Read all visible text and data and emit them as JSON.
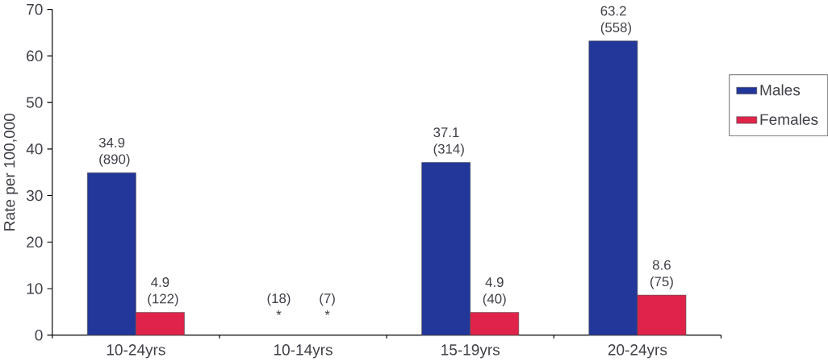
{
  "chart_data": {
    "type": "bar",
    "ylabel": "Rate per 100,000",
    "categories": [
      "10-24yrs",
      "10-14yrs",
      "15-19yrs",
      "20-24yrs"
    ],
    "series": [
      {
        "name": "Males",
        "color": "#23379a",
        "values": [
          34.9,
          null,
          37.1,
          63.2
        ],
        "value_labels": [
          "34.9 (890)",
          "(18) *",
          "37.1 (314)",
          "63.2 (558)"
        ]
      },
      {
        "name": "Females",
        "color": "#e0234a",
        "values": [
          4.9,
          null,
          4.9,
          8.6
        ],
        "value_labels": [
          "4.9 (122)",
          "(7) *",
          "4.9 (40)",
          "8.6 (75)"
        ]
      }
    ],
    "ylim": [
      0,
      70
    ],
    "yticks": [
      0,
      10,
      20,
      30,
      40,
      50,
      60,
      70
    ],
    "legend": "right"
  }
}
